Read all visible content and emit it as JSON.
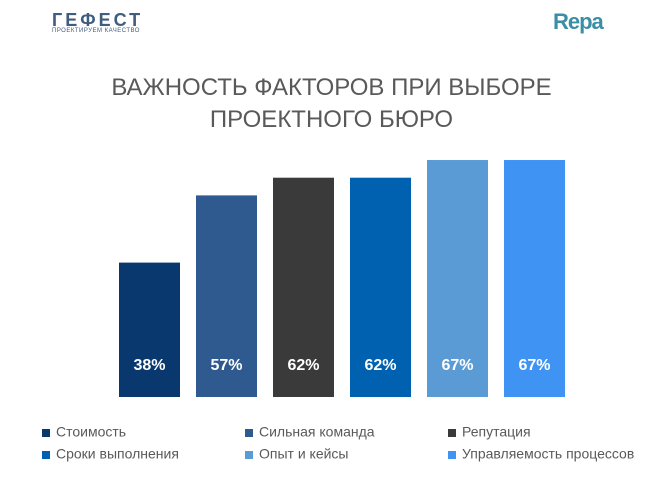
{
  "header": {
    "logo_left": "ГЕФЕСТ",
    "logo_left_tagline": "ПРОЕКТИРУЕМ КАЧЕСТВО",
    "logo_right": "Repa"
  },
  "chart_data": {
    "type": "bar",
    "title": "ВАЖНОСТЬ ФАКТОРОВ ПРИ ВЫБОРЕ ПРОЕКТНОГО БЮРО",
    "series": [
      {
        "name": "Стоимость",
        "color": "#08386e",
        "values": [
          38
        ],
        "value_labels": [
          "38%"
        ]
      },
      {
        "name": "Сильная команда",
        "color": "#2f5a8f",
        "values": [
          57
        ],
        "value_labels": [
          "57%"
        ]
      },
      {
        "name": "Репутация",
        "color": "#3a3a3a",
        "values": [
          62
        ],
        "value_labels": [
          "62%"
        ]
      },
      {
        "name": "Сроки выполнения",
        "color": "#0061b0",
        "values": [
          62
        ],
        "value_labels": [
          "62%"
        ]
      },
      {
        "name": "Опыт и кейсы",
        "color": "#5b9bd5",
        "values": [
          67
        ],
        "value_labels": [
          "67%"
        ]
      },
      {
        "name": "Управляемость процессов",
        "color": "#3f93f2",
        "values": [
          67
        ],
        "value_labels": [
          "67%"
        ]
      }
    ]
  }
}
